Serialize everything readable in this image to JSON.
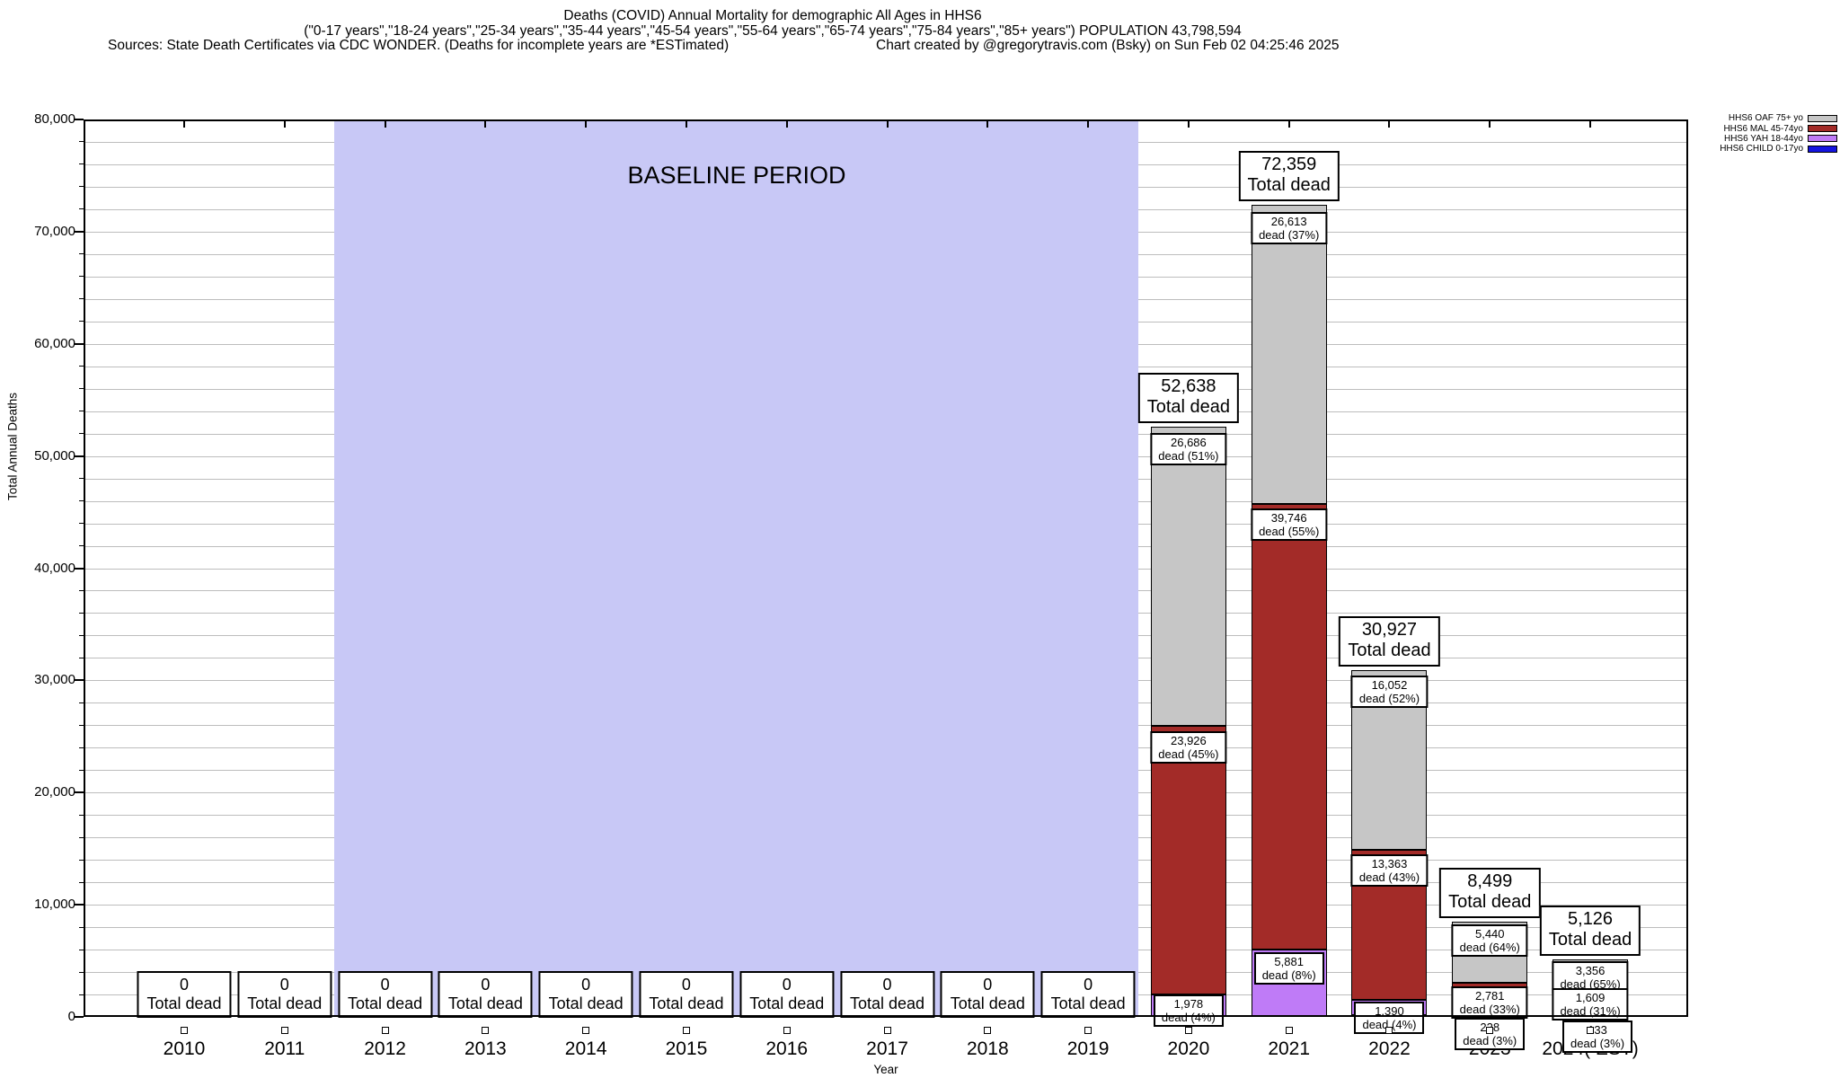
{
  "header": {
    "title": "Deaths (COVID) Annual Mortality for demographic All Ages in HHS6",
    "subtitle": "(\"0-17 years\",\"18-24 years\",\"25-34 years\",\"35-44 years\",\"45-54 years\",\"55-64 years\",\"65-74 years\",\"75-84 years\",\"85+ years\") POPULATION 43,798,594",
    "sources": "Sources: State Death Certificates via CDC WONDER. (Deaths for incomplete years are *ESTimated)",
    "credit": "Chart created by @gregorytravis.com (Bsky) on Sun Feb 02 04:25:46 2025"
  },
  "chart_data": {
    "type": "bar",
    "stacked": true,
    "title": "Deaths (COVID) Annual Mortality for demographic All Ages in HHS6",
    "xlabel": "Year",
    "ylabel": "Total Annual Deaths",
    "ylim": [
      0,
      80000
    ],
    "ytick_labels": [
      "0",
      "10,000",
      "20,000",
      "30,000",
      "40,000",
      "50,000",
      "60,000",
      "70,000",
      "80,000"
    ],
    "minor_grid_step": 2000,
    "grid": true,
    "legend_position": "top-right",
    "baseline_region": {
      "label": "BASELINE PERIOD",
      "x_start": "2011.5",
      "x_end": "2019.5",
      "color": "#c8c8f6"
    },
    "categories": [
      "2010",
      "2011",
      "2012",
      "2013",
      "2014",
      "2015",
      "2016",
      "2017",
      "2018",
      "2019",
      "2020",
      "2021",
      "2022",
      "2023",
      "2024( EST)"
    ],
    "totals": [
      0,
      0,
      0,
      0,
      0,
      0,
      0,
      0,
      0,
      0,
      52638,
      72359,
      30927,
      8499,
      5126
    ],
    "total_display": [
      "0",
      "0",
      "0",
      "0",
      "0",
      "0",
      "0",
      "0",
      "0",
      "0",
      "52,638",
      "72,359",
      "30,927",
      "8,499",
      "5,126"
    ],
    "total_caption": "Total dead",
    "series": [
      {
        "key": "CHILD",
        "name": "HHS6 CHILD 0-17yo",
        "color": "#1414e0",
        "values": [
          0,
          0,
          0,
          0,
          0,
          0,
          0,
          0,
          0,
          0,
          48,
          119,
          122,
          50,
          28
        ],
        "labels": {}
      },
      {
        "key": "YAH",
        "name": "HHS6 YAH 18-44yo",
        "color": "#bf7bf7",
        "values": [
          0,
          0,
          0,
          0,
          0,
          0,
          0,
          0,
          0,
          0,
          1978,
          5881,
          1390,
          228,
          133
        ],
        "labels": {
          "10": [
            "1,978",
            "dead (4%)"
          ],
          "11": [
            "5,881",
            "dead (8%)"
          ],
          "12": [
            "1,390",
            "dead (4%)"
          ],
          "13": [
            "228",
            "dead (3%)"
          ],
          "14": [
            "133",
            "dead (3%)"
          ]
        }
      },
      {
        "key": "MAL",
        "name": "HHS6 MAL 45-74yo",
        "color": "#a32b28",
        "values": [
          0,
          0,
          0,
          0,
          0,
          0,
          0,
          0,
          0,
          0,
          23926,
          39746,
          13363,
          2781,
          1609
        ],
        "labels": {
          "10": [
            "23,926",
            "dead (45%)"
          ],
          "11": [
            "39,746",
            "dead (55%)"
          ],
          "12": [
            "13,363",
            "dead (43%)"
          ],
          "13": [
            "2,781",
            "dead (33%)"
          ],
          "14": [
            "1,609",
            "dead (31%)"
          ]
        }
      },
      {
        "key": "OAF",
        "name": "HHS6 OAF 75+ yo",
        "color": "#c6c6c6",
        "values": [
          0,
          0,
          0,
          0,
          0,
          0,
          0,
          0,
          0,
          0,
          26686,
          26613,
          16052,
          5440,
          3356
        ],
        "labels": {
          "10": [
            "26,686",
            "dead (51%)"
          ],
          "11": [
            "26,613",
            "dead (37%)"
          ],
          "12": [
            "16,052",
            "dead (52%)"
          ],
          "13": [
            "5,440",
            "dead (64%)"
          ],
          "14": [
            "3,356",
            "dead (65%)"
          ]
        }
      }
    ],
    "legend": [
      {
        "label": "HHS6 OAF 75+ yo",
        "color": "#c6c6c6"
      },
      {
        "label": "HHS6 MAL 45-74yo",
        "color": "#a32b28"
      },
      {
        "label": "HHS6 YAH 18-44yo",
        "color": "#bf7bf7"
      },
      {
        "label": "HHS6 CHILD 0-17yo",
        "color": "#1414e0"
      }
    ]
  }
}
